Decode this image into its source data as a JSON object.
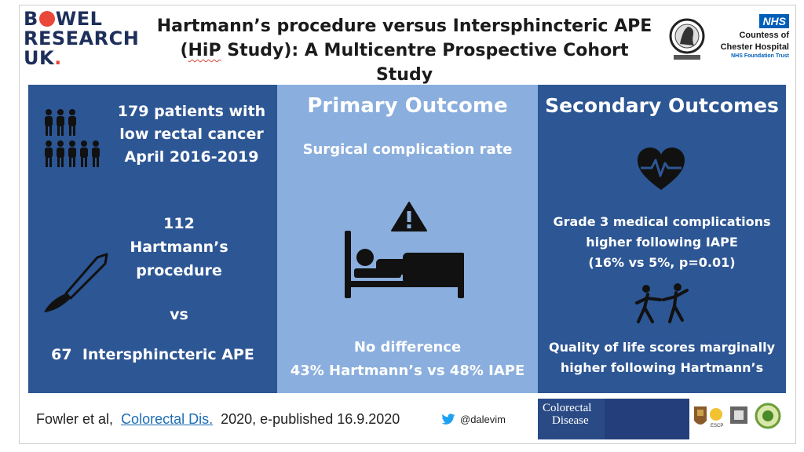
{
  "header": {
    "brand_line1_pre": "B",
    "brand_line1_post": "WEL",
    "brand_line2": "RESEARCH",
    "brand_line3": "UK",
    "brand_dot": ".",
    "title_line1": "Hartmann’s procedure versus Intersphincteric APE",
    "title_line2_pre": "(",
    "title_line2_hip": "HiP",
    "title_line2_post": " Study): A Multicentre Prospective Cohort Study",
    "nhs_badge": "NHS",
    "hospital_line1": "Countess of",
    "hospital_line2": "Chester Hospital",
    "hospital_line3": "NHS Foundation Trust"
  },
  "panel_left": {
    "patients_line1": "179 patients with",
    "patients_line2": "low rectal cancer",
    "patients_line3": "April 2016-2019",
    "hartmann_count": "112",
    "hartmann_line1": "Hartmann’s",
    "hartmann_line2": "procedure",
    "vs": "vs",
    "iape": "67  Intersphincteric APE"
  },
  "panel_center": {
    "heading": "Primary Outcome",
    "subheading": "Surgical complication rate",
    "result_line1": "No difference",
    "result_line2": "43% Hartmann’s vs 48% IAPE"
  },
  "panel_right": {
    "heading": "Secondary Outcomes",
    "finding1_line1": "Grade 3 medical complications",
    "finding1_line2": "higher following IAPE",
    "finding1_line3": "(16% vs 5%, p=0.01)",
    "finding2_line1": "Quality of life scores marginally",
    "finding2_line2": "higher following Hartmann’s"
  },
  "footer": {
    "cite_pre": "Fowler et al,",
    "journal_link": "Colorectal Dis.",
    "cite_post": "2020, e-published 16.9.2020",
    "twitter_handle": "@dalevim",
    "journal_line1": "Colorectal",
    "journal_line2": "Disease"
  },
  "colors": {
    "panel_dark": "#2d5694",
    "panel_light": "#8aaedd",
    "brand_red": "#e8473a",
    "nhs_blue": "#005eb8",
    "twitter_blue": "#1da1f2"
  },
  "icons": [
    "people-icon",
    "scalpel-icon",
    "warning-icon",
    "hospital-bed-icon",
    "heart-pulse-icon",
    "dancing-people-icon",
    "twitter-icon"
  ]
}
